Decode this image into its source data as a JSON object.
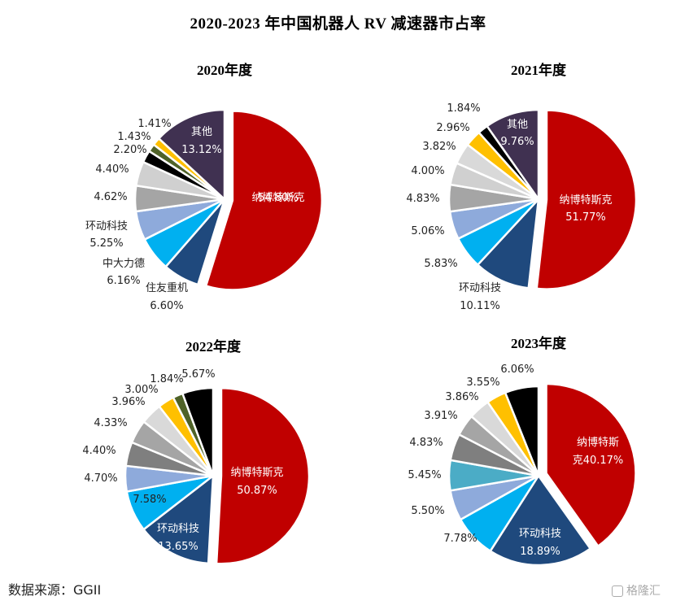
{
  "title": "2020-2023 年中国机器人 RV 减速器市占率",
  "source": "数据来源：GGII",
  "watermark": "格隆汇",
  "chart_data": [
    {
      "type": "pie",
      "title": "2020年度",
      "slices": [
        {
          "label": "纳博特斯克",
          "value": 54.8,
          "display": "54.80%",
          "color": "#c00000"
        },
        {
          "label": "住友重机",
          "value": 6.6,
          "display": "6.60%",
          "color": "#1f497d"
        },
        {
          "label": "中大力德",
          "value": 6.16,
          "display": "6.16%",
          "color": "#00b0f0"
        },
        {
          "label": "环动科技",
          "value": 5.25,
          "display": "5.25%",
          "color": "#8eaadb"
        },
        {
          "label": "",
          "value": 4.62,
          "display": "4.62%",
          "color": "#a5a5a5"
        },
        {
          "label": "",
          "value": 4.4,
          "display": "4.40%",
          "color": "#d0d0d0"
        },
        {
          "label": "",
          "value": 2.2,
          "display": "2.20%",
          "color": "#000000"
        },
        {
          "label": "",
          "value": 1.43,
          "display": "1.43%",
          "color": "#4f6228"
        },
        {
          "label": "",
          "value": 1.41,
          "display": "1.41%",
          "color": "#ffc000"
        },
        {
          "label": "其他",
          "value": 13.12,
          "display": "13.12%",
          "color": "#403151"
        }
      ]
    },
    {
      "type": "pie",
      "title": "2021年度",
      "slices": [
        {
          "label": "纳博特斯克",
          "value": 51.77,
          "display": "51.77%",
          "color": "#c00000"
        },
        {
          "label": "环动科技",
          "value": 10.11,
          "display": "10.11%",
          "color": "#1f497d"
        },
        {
          "label": "",
          "value": 5.83,
          "display": "5.83%",
          "color": "#00b0f0"
        },
        {
          "label": "",
          "value": 5.06,
          "display": "5.06%",
          "color": "#8eaadb"
        },
        {
          "label": "",
          "value": 4.83,
          "display": "4.83%",
          "color": "#a5a5a5"
        },
        {
          "label": "",
          "value": 4.0,
          "display": "4.00%",
          "color": "#d0d0d0"
        },
        {
          "label": "",
          "value": 3.82,
          "display": "3.82%",
          "color": "#d9d9d9"
        },
        {
          "label": "",
          "value": 2.96,
          "display": "2.96%",
          "color": "#ffc000"
        },
        {
          "label": "",
          "value": 1.84,
          "display": "1.84%",
          "color": "#000000"
        },
        {
          "label": "其他",
          "value": 9.76,
          "display": "9.76%",
          "color": "#403151"
        }
      ]
    },
    {
      "type": "pie",
      "title": "2022年度",
      "slices": [
        {
          "label": "纳博特斯克",
          "value": 50.87,
          "display": "50.87%",
          "color": "#c00000"
        },
        {
          "label": "环动科技",
          "value": 13.65,
          "display": "13.65%",
          "color": "#1f497d"
        },
        {
          "label": "",
          "value": 7.58,
          "display": "7.58%",
          "color": "#00b0f0"
        },
        {
          "label": "",
          "value": 4.7,
          "display": "4.70%",
          "color": "#8eaadb"
        },
        {
          "label": "",
          "value": 4.4,
          "display": "4.40%",
          "color": "#7f7f7f"
        },
        {
          "label": "",
          "value": 4.33,
          "display": "4.33%",
          "color": "#a5a5a5"
        },
        {
          "label": "",
          "value": 3.96,
          "display": "3.96%",
          "color": "#d9d9d9"
        },
        {
          "label": "",
          "value": 3.0,
          "display": "3.00%",
          "color": "#ffc000"
        },
        {
          "label": "",
          "value": 1.84,
          "display": "1.84%",
          "color": "#4f6228"
        },
        {
          "label": "",
          "value": 5.67,
          "display": "5.67%",
          "color": "#000000"
        }
      ]
    },
    {
      "type": "pie",
      "title": "2023年度",
      "slices": [
        {
          "label": "纳博特斯克",
          "value": 40.17,
          "display": "40.17%",
          "color": "#c00000"
        },
        {
          "label": "环动科技",
          "value": 18.89,
          "display": "18.89%",
          "color": "#1f497d"
        },
        {
          "label": "",
          "value": 7.78,
          "display": "7.78%",
          "color": "#00b0f0"
        },
        {
          "label": "",
          "value": 5.5,
          "display": "5.50%",
          "color": "#8eaadb"
        },
        {
          "label": "",
          "value": 5.45,
          "display": "5.45%",
          "color": "#4bacc6"
        },
        {
          "label": "",
          "value": 4.83,
          "display": "4.83%",
          "color": "#7f7f7f"
        },
        {
          "label": "",
          "value": 3.91,
          "display": "3.91%",
          "color": "#a5a5a5"
        },
        {
          "label": "",
          "value": 3.86,
          "display": "3.86%",
          "color": "#d9d9d9"
        },
        {
          "label": "",
          "value": 3.55,
          "display": "3.55%",
          "color": "#ffc000"
        },
        {
          "label": "",
          "value": 6.06,
          "display": "6.06%",
          "color": "#000000"
        }
      ]
    }
  ]
}
